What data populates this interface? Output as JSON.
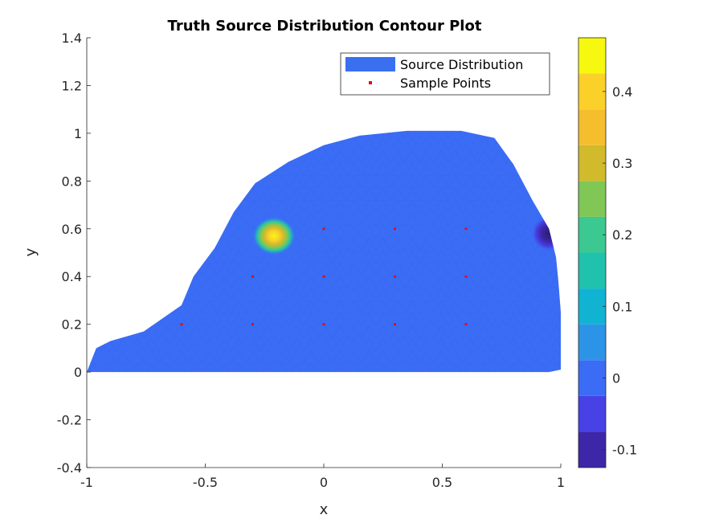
{
  "chart_data": {
    "type": "contour",
    "title": "Truth Source Distribution Contour Plot",
    "xlabel": "x",
    "ylabel": "y",
    "xlim": [
      -1,
      1
    ],
    "ylim": [
      -0.4,
      1.4
    ],
    "xticks": [
      -1,
      -0.5,
      0,
      0.5,
      1
    ],
    "xtick_labels": [
      "-1",
      "-0.5",
      "0",
      "0.5",
      "1"
    ],
    "yticks": [
      -0.4,
      -0.2,
      0,
      0.2,
      0.4,
      0.6,
      0.8,
      1,
      1.2,
      1.4
    ],
    "ytick_labels": [
      "-0.4",
      "-0.2",
      "0",
      "0.2",
      "0.4",
      "0.6",
      "0.8",
      "1",
      "1.2",
      "1.4"
    ],
    "legend_position": "top-right",
    "legend": [
      {
        "label": "Source Distribution",
        "kind": "patch",
        "color": "#3a6ff0"
      },
      {
        "label": "Sample Points",
        "kind": "marker",
        "color": "#e01010"
      }
    ],
    "domain_boundary": [
      [
        -1.0,
        0.0
      ],
      [
        -0.96,
        0.1
      ],
      [
        -0.9,
        0.13
      ],
      [
        -0.76,
        0.17
      ],
      [
        -0.6,
        0.28
      ],
      [
        -0.55,
        0.4
      ],
      [
        -0.46,
        0.52
      ],
      [
        -0.38,
        0.67
      ],
      [
        -0.29,
        0.79
      ],
      [
        -0.15,
        0.88
      ],
      [
        0.0,
        0.95
      ],
      [
        0.15,
        0.99
      ],
      [
        0.35,
        1.01
      ],
      [
        0.58,
        1.01
      ],
      [
        0.72,
        0.98
      ],
      [
        0.8,
        0.87
      ],
      [
        0.88,
        0.72
      ],
      [
        0.95,
        0.6
      ],
      [
        0.98,
        0.48
      ],
      [
        0.99,
        0.38
      ],
      [
        1.0,
        0.25
      ],
      [
        1.0,
        0.01
      ],
      [
        0.95,
        0.0
      ],
      [
        -0.6,
        0.0
      ]
    ],
    "background_level": 0.02,
    "features": [
      {
        "kind": "peak",
        "x": -0.21,
        "y": 0.57,
        "value": 0.42
      },
      {
        "kind": "trough",
        "x": 0.95,
        "y": 0.58,
        "value": -0.11
      }
    ],
    "sample_points": [
      {
        "x": -0.6,
        "y": 0.2
      },
      {
        "x": -0.3,
        "y": 0.2
      },
      {
        "x": 0.0,
        "y": 0.2
      },
      {
        "x": 0.3,
        "y": 0.2
      },
      {
        "x": 0.6,
        "y": 0.2
      },
      {
        "x": -0.3,
        "y": 0.4
      },
      {
        "x": 0.0,
        "y": 0.4
      },
      {
        "x": 0.3,
        "y": 0.4
      },
      {
        "x": 0.6,
        "y": 0.4
      },
      {
        "x": 0.0,
        "y": 0.6
      },
      {
        "x": 0.3,
        "y": 0.6
      },
      {
        "x": 0.6,
        "y": 0.6
      }
    ],
    "colorbar": {
      "lim": [
        -0.125,
        0.475
      ],
      "ticks": [
        -0.1,
        0,
        0.1,
        0.2,
        0.3,
        0.4
      ],
      "tick_labels": [
        "-0.1",
        "0",
        "0.1",
        "0.2",
        "0.3",
        "0.4"
      ],
      "bands": [
        {
          "from": -0.125,
          "to": -0.075,
          "color": "#3d26a8"
        },
        {
          "from": -0.075,
          "to": -0.025,
          "color": "#4741e6"
        },
        {
          "from": -0.025,
          "to": 0.025,
          "color": "#3b6cf5"
        },
        {
          "from": 0.025,
          "to": 0.075,
          "color": "#2c94e6"
        },
        {
          "from": 0.075,
          "to": 0.125,
          "color": "#11b3d3"
        },
        {
          "from": 0.125,
          "to": 0.175,
          "color": "#21c2ad"
        },
        {
          "from": 0.175,
          "to": 0.225,
          "color": "#3bc891"
        },
        {
          "from": 0.225,
          "to": 0.275,
          "color": "#80c755"
        },
        {
          "from": 0.275,
          "to": 0.325,
          "color": "#d1ba2c"
        },
        {
          "from": 0.325,
          "to": 0.375,
          "color": "#f5be2d"
        },
        {
          "from": 0.375,
          "to": 0.425,
          "color": "#fbd029"
        },
        {
          "from": 0.425,
          "to": 0.475,
          "color": "#f6f80f"
        }
      ]
    }
  }
}
